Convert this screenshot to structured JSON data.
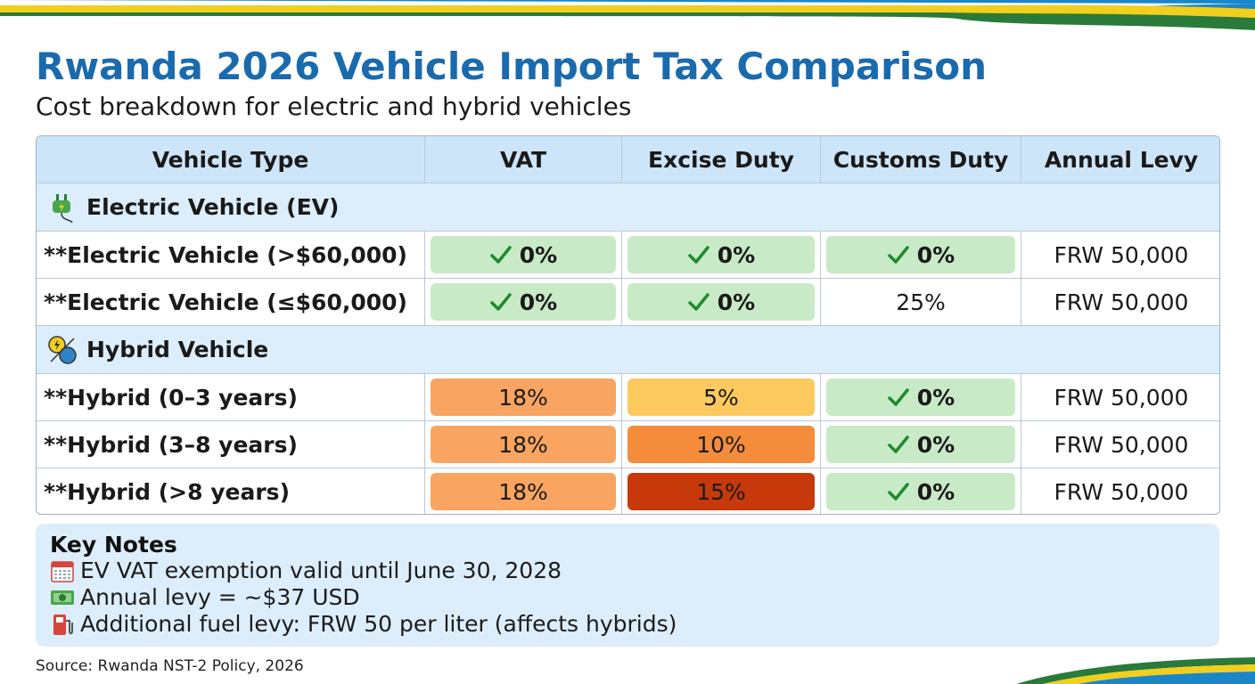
{
  "header": {
    "title": "Rwanda 2026 Vehicle Import Tax Comparison",
    "subtitle": "Cost breakdown for electric and hybrid vehicles"
  },
  "table": {
    "columns": [
      "Vehicle Type",
      "VAT",
      "Excise Duty",
      "Customs Duty",
      "Annual Levy"
    ],
    "sections": [
      {
        "label": "Electric Vehicle (EV)",
        "rows": [
          {
            "label": "**Electric Vehicle (>$60,000)",
            "cells": [
              {
                "text": "0%",
                "check": true,
                "fill": "#c8eac6"
              },
              {
                "text": "0%",
                "check": true,
                "fill": "#c8eac6"
              },
              {
                "text": "0%",
                "check": true,
                "fill": "#c8eac6"
              },
              {
                "text": "FRW 50,000",
                "check": false,
                "fill": null
              }
            ]
          },
          {
            "label": "**Electric Vehicle (≤$60,000)",
            "cells": [
              {
                "text": "0%",
                "check": true,
                "fill": "#c8eac6"
              },
              {
                "text": "0%",
                "check": true,
                "fill": "#c8eac6"
              },
              {
                "text": "25%",
                "check": false,
                "fill": null
              },
              {
                "text": "FRW 50,000",
                "check": false,
                "fill": null
              }
            ]
          }
        ]
      },
      {
        "label": "Hybrid Vehicle",
        "rows": [
          {
            "label": "**Hybrid (0–3 years)",
            "cells": [
              {
                "text": "18%",
                "check": false,
                "fill": "#f9a460"
              },
              {
                "text": "5%",
                "check": false,
                "fill": "#fcc95e"
              },
              {
                "text": "0%",
                "check": true,
                "fill": "#c8eac6"
              },
              {
                "text": "FRW 50,000",
                "check": false,
                "fill": null
              }
            ]
          },
          {
            "label": "**Hybrid (3–8 years)",
            "cells": [
              {
                "text": "18%",
                "check": false,
                "fill": "#f9a460"
              },
              {
                "text": "10%",
                "check": false,
                "fill": "#f48c3c"
              },
              {
                "text": "0%",
                "check": true,
                "fill": "#c8eac6"
              },
              {
                "text": "FRW 50,000",
                "check": false,
                "fill": null
              }
            ]
          },
          {
            "label": "**Hybrid (>8 years)",
            "cells": [
              {
                "text": "18%",
                "check": false,
                "fill": "#f9a460"
              },
              {
                "text": "15%",
                "check": false,
                "fill": "#c7390b"
              },
              {
                "text": "0%",
                "check": true,
                "fill": "#c8eac6"
              },
              {
                "text": "FRW 50,000",
                "check": false,
                "fill": null
              }
            ]
          }
        ]
      }
    ]
  },
  "notes": {
    "title": "Key Notes",
    "items": [
      "EV VAT exemption valid until June 30, 2028",
      "Annual levy = ~$37 USD",
      "Additional fuel levy: FRW 50 per liter (affects hybrids)"
    ]
  },
  "source": "Source: Rwanda NST-2 Policy, 2026"
}
